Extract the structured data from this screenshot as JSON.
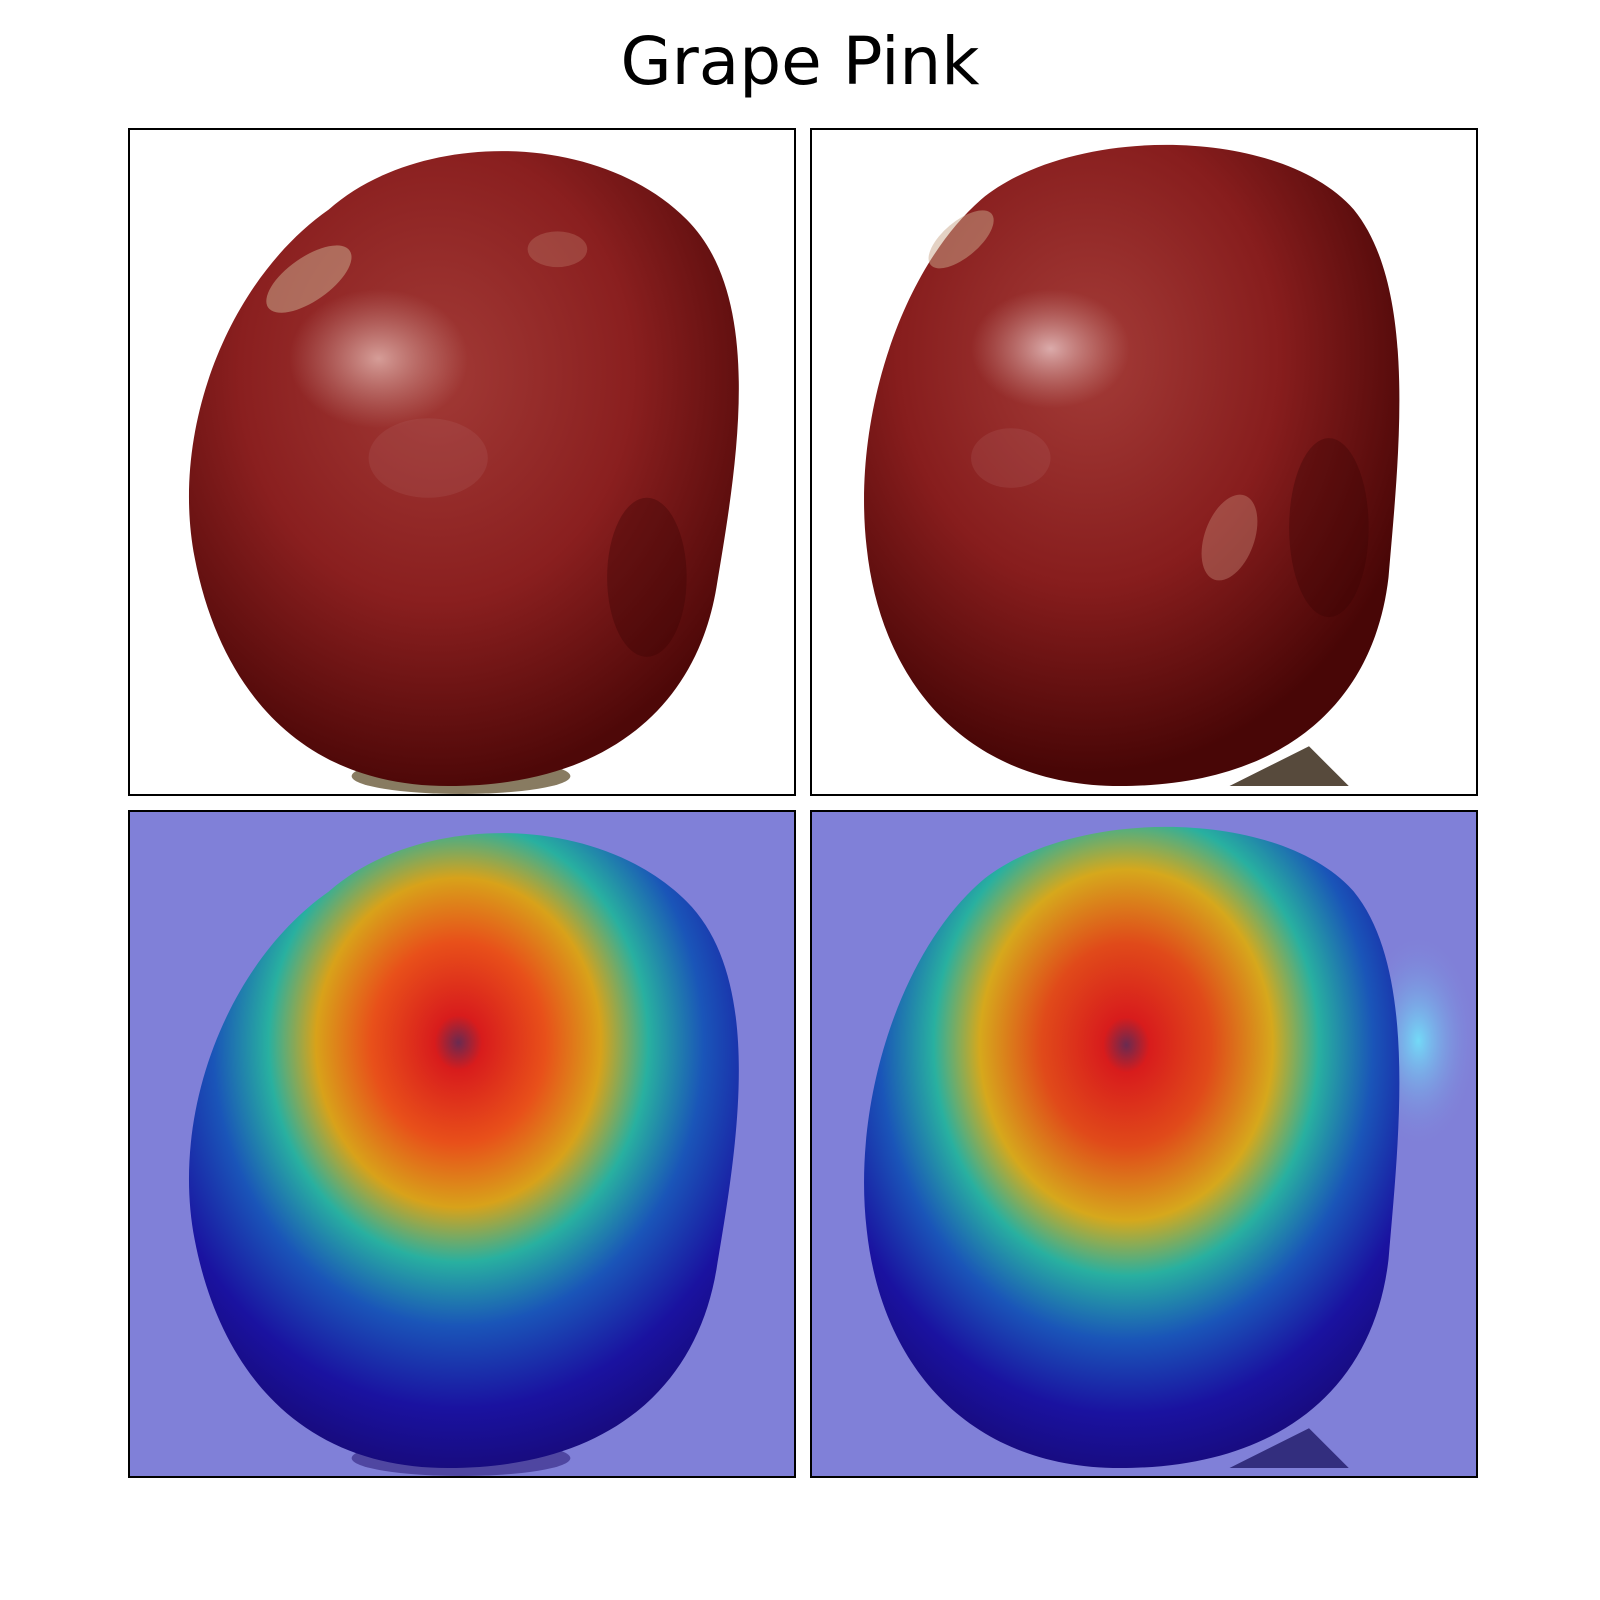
{
  "figure": {
    "title": "Grape Pink",
    "panels": [
      {
        "row": 1,
        "col": 1,
        "kind": "photo",
        "subject": "red-grape-photo"
      },
      {
        "row": 1,
        "col": 2,
        "kind": "photo",
        "subject": "red-grape-photo"
      },
      {
        "row": 2,
        "col": 1,
        "kind": "heatmap-overlay",
        "subject": "grape-saliency-heatmap"
      },
      {
        "row": 2,
        "col": 2,
        "kind": "heatmap-overlay",
        "subject": "grape-saliency-heatmap"
      }
    ],
    "colors": {
      "grape_dark": "#5c0c0c",
      "grape_mid": "#8a1f1f",
      "grape_highlight": "#c8908a",
      "heatmap_background": "#8080d8",
      "heatmap_low": "#1a0a8a",
      "heatmap_mid": "#20b0a0",
      "heatmap_high": "#e02020"
    }
  }
}
